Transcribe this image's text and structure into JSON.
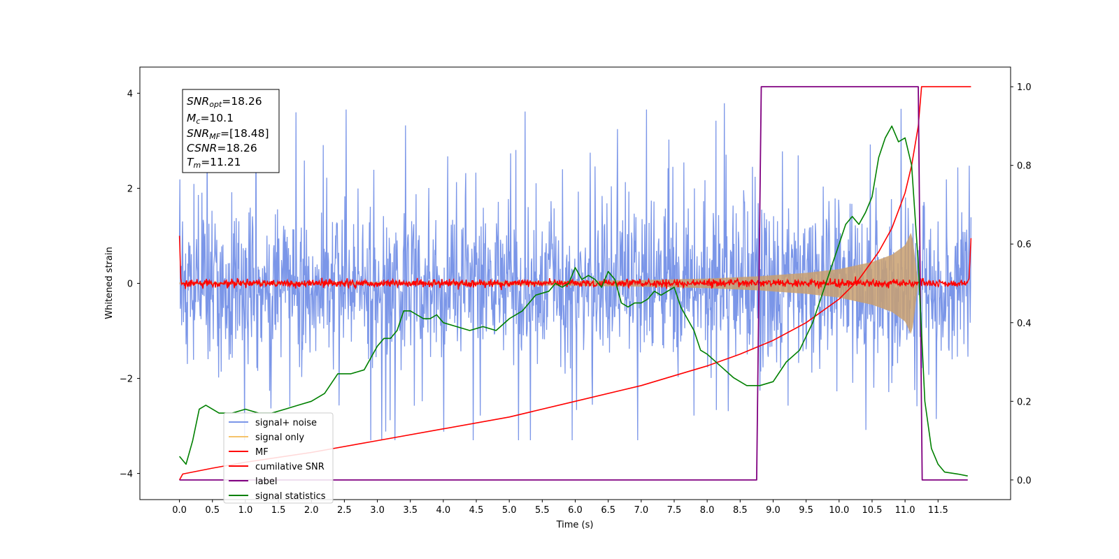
{
  "chart_data": {
    "type": "line",
    "xlabel": "Time (s)",
    "ylabel": "Whitened strain",
    "xlim": [
      -0.6,
      12.6
    ],
    "ylim": [
      -4.55,
      4.55
    ],
    "y2lim": [
      -0.05,
      1.05
    ],
    "grid": false,
    "legend_position": "lower-left",
    "x_ticks": [
      "0.0",
      "0.5",
      "1.0",
      "1.5",
      "2.0",
      "2.5",
      "3.0",
      "3.5",
      "4.0",
      "4.5",
      "5.0",
      "5.5",
      "6.0",
      "6.5",
      "7.0",
      "7.5",
      "8.0",
      "8.5",
      "9.0",
      "9.5",
      "10.0",
      "10.5",
      "11.0",
      "11.5"
    ],
    "y_ticks": [
      "−4",
      "−2",
      "0",
      "2",
      "4"
    ],
    "y2_ticks": [
      "0.0",
      "0.2",
      "0.4",
      "0.6",
      "0.8",
      "1.0"
    ],
    "info_box": {
      "snr_opt": {
        "sym": "SNR",
        "sub": "opt",
        "val": "=18.26"
      },
      "mc": {
        "sym": "M",
        "sub": "c",
        "val": "=10.1"
      },
      "snr_mf": {
        "sym": "SNR",
        "sub": "MF",
        "val": "=[18.48]"
      },
      "csnr": {
        "sym": "CSNR",
        "sub": "",
        "val": "=18.26"
      },
      "tm": {
        "sym": "T",
        "sub": "m",
        "val": "=11.21"
      }
    },
    "series": [
      {
        "name": "signal+ noise",
        "color": "#7b96e8",
        "axis": "left",
        "noise_band": [
          -2.4,
          2.4
        ],
        "spike_extremes": [
          -3.3,
          4.15
        ]
      },
      {
        "name": "signal only",
        "color": "#f5c36a",
        "axis": "left",
        "amplitude_envelope": {
          "x": [
            0,
            4,
            6,
            7,
            8,
            8.8,
            9.5,
            10,
            10.5,
            10.8,
            11.0,
            11.1,
            11.2
          ],
          "y": [
            0.02,
            0.03,
            0.05,
            0.07,
            0.1,
            0.15,
            0.22,
            0.3,
            0.45,
            0.6,
            0.8,
            1.1,
            0
          ]
        }
      },
      {
        "name": "MF",
        "color": "#ff0000",
        "axis": "left",
        "baseline": 0.0,
        "noise": 0.08,
        "start_value": 1.0,
        "end_value": 0.95
      },
      {
        "name": "cumilative SNR",
        "color": "#ff0000",
        "axis": "right",
        "x": [
          0,
          0.05,
          0.5,
          1,
          2,
          3,
          4,
          5,
          6,
          7,
          7.5,
          8,
          8.5,
          9,
          9.5,
          10,
          10.3,
          10.6,
          10.8,
          11.0,
          11.1,
          11.2,
          11.25,
          11.3,
          12.0
        ],
        "y": [
          0.0,
          0.015,
          0.03,
          0.045,
          0.07,
          0.1,
          0.13,
          0.16,
          0.2,
          0.24,
          0.265,
          0.29,
          0.32,
          0.355,
          0.4,
          0.46,
          0.51,
          0.58,
          0.64,
          0.73,
          0.8,
          0.9,
          1.0,
          1.0,
          1.0
        ]
      },
      {
        "name": "label",
        "color": "#800080",
        "axis": "right",
        "x": [
          0,
          8.75,
          8.82,
          11.2,
          11.26,
          11.95
        ],
        "y": [
          0,
          0,
          1,
          1,
          0,
          0
        ]
      },
      {
        "name": "signal statistics",
        "color": "#008000",
        "axis": "right",
        "x": [
          0,
          0.1,
          0.2,
          0.3,
          0.4,
          0.5,
          0.6,
          0.8,
          1.0,
          1.2,
          1.4,
          1.6,
          1.8,
          2.0,
          2.2,
          2.4,
          2.6,
          2.8,
          3.0,
          3.1,
          3.2,
          3.3,
          3.4,
          3.5,
          3.6,
          3.7,
          3.8,
          3.9,
          4.0,
          4.2,
          4.4,
          4.6,
          4.8,
          5.0,
          5.2,
          5.4,
          5.6,
          5.7,
          5.8,
          5.9,
          6.0,
          6.1,
          6.2,
          6.3,
          6.4,
          6.5,
          6.6,
          6.7,
          6.8,
          6.9,
          7.0,
          7.1,
          7.2,
          7.3,
          7.4,
          7.5,
          7.6,
          7.7,
          7.8,
          7.9,
          8.0,
          8.2,
          8.4,
          8.6,
          8.8,
          9.0,
          9.2,
          9.4,
          9.6,
          9.8,
          10.0,
          10.1,
          10.2,
          10.3,
          10.4,
          10.5,
          10.6,
          10.7,
          10.8,
          10.9,
          11.0,
          11.1,
          11.2,
          11.3,
          11.4,
          11.5,
          11.6,
          11.8,
          11.95
        ],
        "y": [
          0.06,
          0.04,
          0.1,
          0.18,
          0.19,
          0.18,
          0.17,
          0.17,
          0.18,
          0.17,
          0.17,
          0.18,
          0.19,
          0.2,
          0.22,
          0.27,
          0.27,
          0.28,
          0.34,
          0.36,
          0.36,
          0.38,
          0.43,
          0.43,
          0.42,
          0.41,
          0.41,
          0.42,
          0.4,
          0.39,
          0.38,
          0.39,
          0.38,
          0.41,
          0.43,
          0.47,
          0.48,
          0.5,
          0.49,
          0.5,
          0.54,
          0.51,
          0.52,
          0.51,
          0.49,
          0.53,
          0.51,
          0.45,
          0.44,
          0.45,
          0.45,
          0.46,
          0.48,
          0.47,
          0.48,
          0.49,
          0.44,
          0.41,
          0.38,
          0.33,
          0.32,
          0.29,
          0.26,
          0.24,
          0.24,
          0.25,
          0.3,
          0.33,
          0.4,
          0.5,
          0.6,
          0.65,
          0.67,
          0.65,
          0.68,
          0.72,
          0.82,
          0.87,
          0.9,
          0.86,
          0.87,
          0.8,
          0.55,
          0.2,
          0.08,
          0.04,
          0.02,
          0.015,
          0.01
        ]
      }
    ]
  }
}
